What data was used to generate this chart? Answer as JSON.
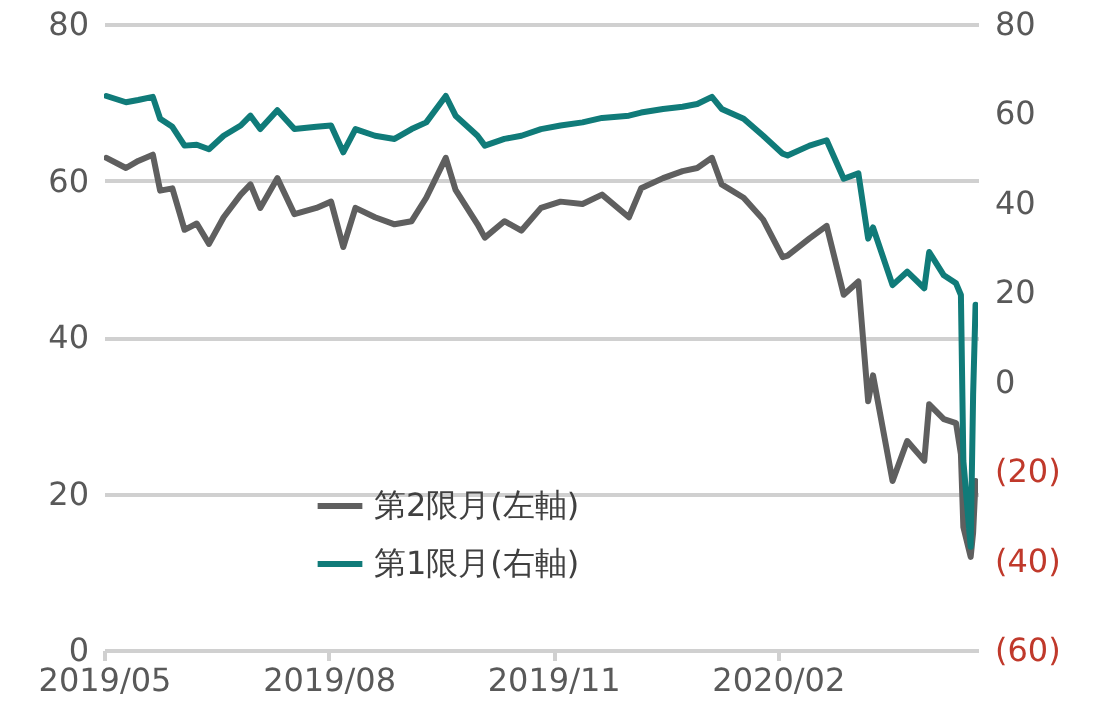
{
  "chart_data": {
    "type": "line",
    "x": [
      "2019-05-02",
      "2019-05-10",
      "2019-05-15",
      "2019-05-21",
      "2019-05-24",
      "2019-05-29",
      "2019-06-03",
      "2019-06-08",
      "2019-06-13",
      "2019-06-19",
      "2019-06-26",
      "2019-06-30",
      "2019-07-04",
      "2019-07-11",
      "2019-07-18",
      "2019-07-27",
      "2019-08-02",
      "2019-08-07",
      "2019-08-12",
      "2019-08-20",
      "2019-08-28",
      "2019-09-04",
      "2019-09-10",
      "2019-09-18",
      "2019-09-22",
      "2019-10-01",
      "2019-10-04",
      "2019-10-12",
      "2019-10-19",
      "2019-10-27",
      "2019-11-04",
      "2019-11-13",
      "2019-11-21",
      "2019-12-02",
      "2019-12-07",
      "2019-12-16",
      "2019-12-24",
      "2019-12-30",
      "2020-01-05",
      "2020-01-09",
      "2020-01-18",
      "2020-01-26",
      "2020-02-03",
      "2020-02-05",
      "2020-02-14",
      "2020-02-21",
      "2020-02-28",
      "2020-03-05",
      "2020-03-09",
      "2020-03-11",
      "2020-03-19",
      "2020-03-25",
      "2020-04-01",
      "2020-04-03",
      "2020-04-09",
      "2020-04-14",
      "2020-04-16",
      "2020-04-17",
      "2020-04-20",
      "2020-04-21",
      "2020-04-22"
    ],
    "series": [
      {
        "name": "第2限月(左軸)",
        "color": "#5f5f5f",
        "values": [
          62.9,
          61.6,
          62.5,
          63.3,
          58.7,
          59,
          53.7,
          54.5,
          51.9,
          55.3,
          58.2,
          59.5,
          56.5,
          60.3,
          55.7,
          56.5,
          57.3,
          51.5,
          56.5,
          55.3,
          54.4,
          54.8,
          57.8,
          62.9,
          58.8,
          54.4,
          52.7,
          54.8,
          53.6,
          56.5,
          57.3,
          57,
          58.2,
          55.3,
          59,
          60.3,
          61.2,
          61.6,
          62.9,
          59.5,
          57.8,
          55,
          50.2,
          50.4,
          52.6,
          54.2,
          45.4,
          47.1,
          31.8,
          35.1,
          21.6,
          26.7,
          24.2,
          31.4,
          29.5,
          29,
          25,
          15.7,
          11.9,
          15,
          21.6
        ]
      },
      {
        "name": "第1限月(右軸)",
        "color": "#107b79",
        "axis": "y2",
        "values": [
          63.9,
          62.5,
          63,
          63.7,
          58.8,
          57,
          52.8,
          53,
          52,
          55,
          57.3,
          59.5,
          56.5,
          60.7,
          56.5,
          57,
          57.3,
          51.3,
          56.5,
          55,
          54.3,
          56.5,
          58,
          63.9,
          59.5,
          55,
          52.8,
          54.3,
          55,
          56.5,
          57.3,
          58,
          59,
          59.5,
          60.2,
          61,
          61.5,
          62.1,
          63.7,
          61,
          58.8,
          55,
          51,
          50.6,
          52.8,
          54,
          45.4,
          46.6,
          32,
          34.5,
          21.6,
          24.6,
          20.9,
          29,
          23.8,
          22,
          19.4,
          -17.7,
          -36.9,
          -2.9,
          17.2
        ]
      }
    ],
    "xlim": [
      "2019-05-01",
      "2020-04-23"
    ],
    "xticks": [
      {
        "value": "2019-05-01",
        "label": "2019/05"
      },
      {
        "value": "2019-08-01",
        "label": "2019/08"
      },
      {
        "value": "2019-11-01",
        "label": "2019/11"
      },
      {
        "value": "2020-02-01",
        "label": "2020/02"
      }
    ],
    "ylim": [
      0,
      80
    ],
    "yticks": [
      0,
      20,
      40,
      60,
      80
    ],
    "y2lim": [
      -60,
      80
    ],
    "y2ticks": [
      80,
      60,
      40,
      20,
      0,
      {
        "value": -20,
        "label": "(20)"
      },
      {
        "value": -40,
        "label": "(40)"
      },
      {
        "value": -60,
        "label": "(60)"
      }
    ],
    "grid": "y",
    "legend": "bottom"
  }
}
